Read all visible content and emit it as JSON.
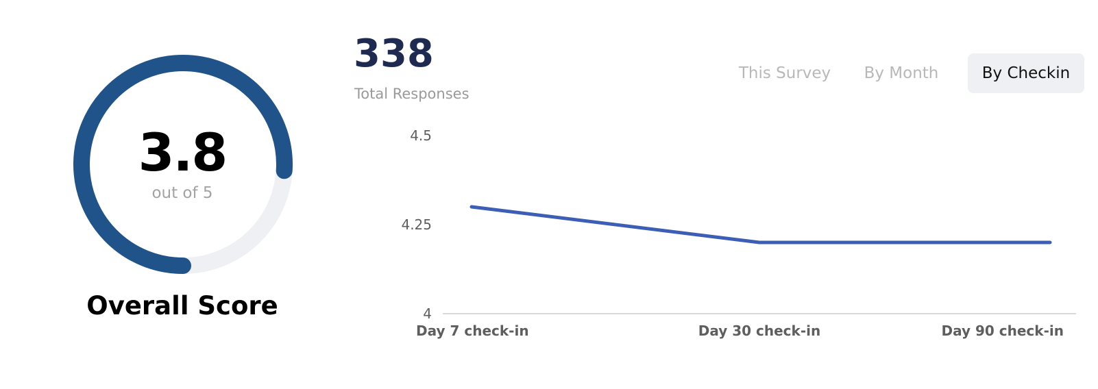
{
  "score": {
    "value": "3.8",
    "scale": "out of 5",
    "title": "Overall Score",
    "fraction": 0.76
  },
  "responses": {
    "count": "338",
    "label": "Total Responses"
  },
  "tabs": [
    {
      "label": "This Survey",
      "active": false
    },
    {
      "label": "By Month",
      "active": false
    },
    {
      "label": "By Checkin",
      "active": true
    }
  ],
  "colors": {
    "gauge": "#1f538a",
    "gauge_track": "#eff0f3",
    "line": "#3c5fb5",
    "axis": "#d9d9d9"
  },
  "chart_data": {
    "type": "line",
    "categories": [
      "Day 7 check-in",
      "Day 30 check-in",
      "Day 90 check-in"
    ],
    "series": [
      {
        "values": [
          4.3,
          4.2,
          4.2
        ]
      }
    ],
    "ylim": [
      4,
      4.5
    ],
    "yticks": [
      "4",
      "4.25",
      "4.5"
    ],
    "grid": false
  }
}
